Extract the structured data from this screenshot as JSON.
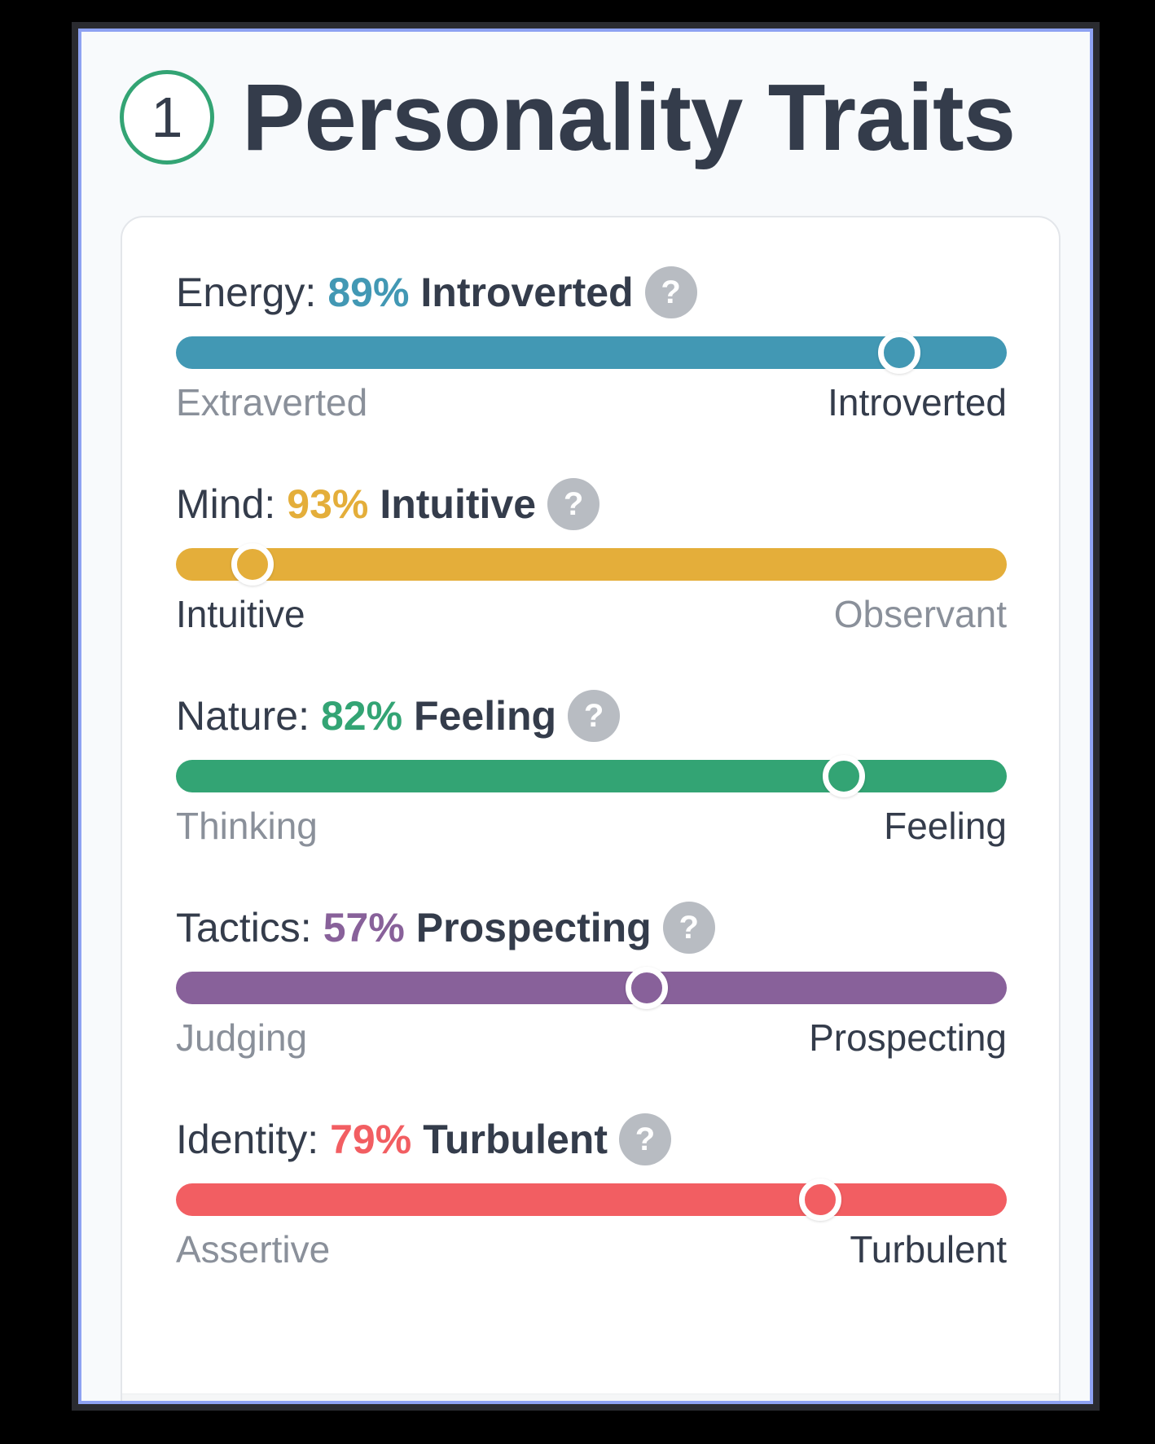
{
  "header": {
    "step_number": "1",
    "title": "Personality Traits"
  },
  "traits": [
    {
      "name": "Energy:",
      "percent": "89%",
      "result": "Introverted",
      "left_pole": "Extraverted",
      "right_pole": "Introverted",
      "active_pole": "right",
      "position": 0.89,
      "color": "#4298b4"
    },
    {
      "name": "Mind:",
      "percent": "93%",
      "result": "Intuitive",
      "left_pole": "Intuitive",
      "right_pole": "Observant",
      "active_pole": "left",
      "position": 0.07,
      "color": "#e4ae3a"
    },
    {
      "name": "Nature:",
      "percent": "82%",
      "result": "Feeling",
      "left_pole": "Thinking",
      "right_pole": "Feeling",
      "active_pole": "right",
      "position": 0.82,
      "color": "#33a474"
    },
    {
      "name": "Tactics:",
      "percent": "57%",
      "result": "Prospecting",
      "left_pole": "Judging",
      "right_pole": "Prospecting",
      "active_pole": "right",
      "position": 0.57,
      "color": "#88619a"
    },
    {
      "name": "Identity:",
      "percent": "79%",
      "result": "Turbulent",
      "left_pole": "Assertive",
      "right_pole": "Turbulent",
      "active_pole": "right",
      "position": 0.79,
      "color": "#f25e62"
    }
  ],
  "help_icon_glyph": "?",
  "colors": {
    "title": "#343c4b",
    "frame_border": "#8ea2f2",
    "step_circle": "#33a474"
  }
}
